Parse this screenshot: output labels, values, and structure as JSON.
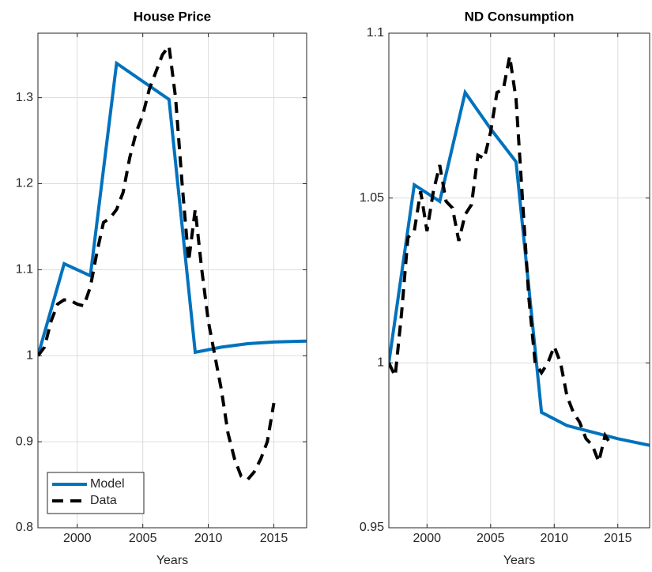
{
  "chart_data": [
    {
      "type": "line",
      "title": "House Price",
      "xlabel": "Years",
      "xlim": [
        1997,
        2017.5
      ],
      "xticks": [
        2000,
        2005,
        2010,
        2015
      ],
      "ylim": [
        0.8,
        1.375
      ],
      "yticks": [
        0.8,
        0.9,
        1,
        1.1,
        1.2,
        1.3
      ],
      "grid": true,
      "legend": "lower left",
      "series": [
        {
          "name": "Model",
          "color": "#0072bd",
          "style": "solid",
          "x": [
            1997,
            1999,
            2001,
            2003,
            2005,
            2007,
            2009,
            2011,
            2013,
            2015,
            2017.5
          ],
          "values": [
            1.0,
            1.107,
            1.093,
            1.34,
            1.319,
            1.298,
            1.004,
            1.01,
            1.014,
            1.016,
            1.017
          ]
        },
        {
          "name": "Data",
          "color": "#000000",
          "style": "dashed",
          "x": [
            1997,
            1997.5,
            1998,
            1998.5,
            1999,
            1999.5,
            2000,
            2000.5,
            2001,
            2001.5,
            2002,
            2002.5,
            2003,
            2003.5,
            2004,
            2004.5,
            2005,
            2005.5,
            2006,
            2006.5,
            2007,
            2007.5,
            2008,
            2008.5,
            2009,
            2009.5,
            2010,
            2010.5,
            2011,
            2011.5,
            2012,
            2012.5,
            2013,
            2013.5,
            2014,
            2014.5,
            2015
          ],
          "values": [
            1.0,
            1.01,
            1.04,
            1.06,
            1.065,
            1.064,
            1.06,
            1.058,
            1.08,
            1.12,
            1.155,
            1.16,
            1.17,
            1.19,
            1.23,
            1.26,
            1.28,
            1.31,
            1.33,
            1.35,
            1.36,
            1.3,
            1.2,
            1.11,
            1.17,
            1.1,
            1.04,
            1.0,
            0.96,
            0.91,
            0.88,
            0.86,
            0.856,
            0.865,
            0.88,
            0.9,
            0.945
          ]
        }
      ]
    },
    {
      "type": "line",
      "title": "ND Consumption",
      "xlabel": "Years",
      "xlim": [
        1997,
        2017.5
      ],
      "xticks": [
        2000,
        2005,
        2010,
        2015
      ],
      "ylim": [
        0.95,
        1.1
      ],
      "yticks": [
        0.95,
        1,
        1.05,
        1.1
      ],
      "grid": true,
      "series": [
        {
          "color": "#0072bd",
          "style": "solid",
          "x": [
            1997,
            1999,
            2001,
            2003,
            2005,
            2007,
            2009,
            2011,
            2013,
            2015,
            2017.5
          ],
          "values": [
            1.0,
            1.054,
            1.049,
            1.082,
            1.071,
            1.061,
            0.985,
            0.981,
            0.979,
            0.977,
            0.975
          ]
        },
        {
          "color": "#000000",
          "style": "dashed",
          "x": [
            1997,
            1997.5,
            1998,
            1998.5,
            1999,
            1999.5,
            2000,
            2000.5,
            2001,
            2001.5,
            2002,
            2002.5,
            2003,
            2003.5,
            2004,
            2004.5,
            2005,
            2005.5,
            2006,
            2006.5,
            2007,
            2007.5,
            2008,
            2008.5,
            2009,
            2009.5,
            2010,
            2010.5,
            2011,
            2011.5,
            2012,
            2012.5,
            2013,
            2013.5,
            2014,
            2014.5
          ],
          "values": [
            1.0,
            0.996,
            1.015,
            1.038,
            1.04,
            1.052,
            1.04,
            1.052,
            1.06,
            1.049,
            1.047,
            1.037,
            1.045,
            1.048,
            1.063,
            1.062,
            1.07,
            1.082,
            1.083,
            1.093,
            1.08,
            1.05,
            1.02,
            1.0,
            0.997,
            1.0,
            1.005,
            1.0,
            0.99,
            0.985,
            0.982,
            0.977,
            0.975,
            0.97,
            0.978,
            0.975
          ]
        }
      ]
    }
  ]
}
